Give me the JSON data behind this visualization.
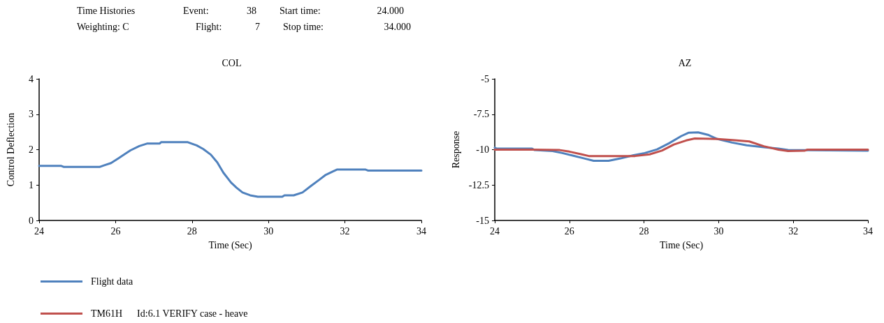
{
  "chart_data": [
    {
      "type": "line",
      "title": "COL",
      "xlabel": "Time (Sec)",
      "ylabel": "Control Deflection",
      "xlim": [
        24,
        34
      ],
      "xticks": [
        24,
        26,
        28,
        30,
        32,
        34
      ],
      "ylim": [
        0,
        4
      ],
      "yticks": [
        0,
        1,
        2,
        3,
        4
      ],
      "grid": false,
      "annotations": [
        "Time Histories",
        "Event:",
        "38",
        "Start time:",
        "24.000",
        "Weighting: C",
        "Flight:",
        "7",
        "Stop time:",
        "34.000"
      ],
      "series": [
        {
          "color": "#4f81bd",
          "x": [
            24,
            24.58,
            24.65,
            25.58,
            25.68,
            25.88,
            26.08,
            26.25,
            26.39,
            26.62,
            26.82,
            27.15,
            27.19,
            27.89,
            27.99,
            28.12,
            28.29,
            28.49,
            28.66,
            28.82,
            29.02,
            29.16,
            29.32,
            29.52,
            29.72,
            30.36,
            30.42,
            30.66,
            30.89,
            31.13,
            31.33,
            31.5,
            31.7,
            31.8,
            32.53,
            32.6,
            34
          ],
          "values": [
            1.54,
            1.54,
            1.51,
            1.51,
            1.55,
            1.62,
            1.76,
            1.88,
            1.98,
            2.1,
            2.17,
            2.17,
            2.21,
            2.21,
            2.17,
            2.12,
            2.02,
            1.86,
            1.64,
            1.35,
            1.07,
            0.93,
            0.79,
            0.71,
            0.67,
            0.67,
            0.71,
            0.71,
            0.79,
            0.99,
            1.15,
            1.29,
            1.39,
            1.44,
            1.44,
            1.41,
            1.41
          ]
        }
      ]
    },
    {
      "type": "line",
      "title": "AZ",
      "xlabel": "Time (Sec)",
      "ylabel": "Response",
      "xlim": [
        24,
        34
      ],
      "xticks": [
        24,
        26,
        28,
        30,
        32,
        34
      ],
      "ylim": [
        -15,
        -5
      ],
      "yticks": [
        -15,
        -12.5,
        -10,
        -7.5,
        -5
      ],
      "grid": false,
      "legend": "bottom left",
      "series": [
        {
          "name": "Flight data",
          "color": "#4f81bd",
          "x": [
            24,
            24.05,
            25.0,
            25.06,
            25.55,
            25.81,
            26.07,
            26.4,
            26.65,
            27.05,
            27.37,
            27.7,
            28.02,
            28.35,
            28.67,
            29.0,
            29.19,
            29.45,
            29.71,
            29.97,
            30.36,
            30.75,
            31.21,
            31.6,
            31.86,
            34
          ],
          "values": [
            -9.86,
            -9.93,
            -9.93,
            -10.02,
            -10.1,
            -10.24,
            -10.41,
            -10.62,
            -10.79,
            -10.79,
            -10.62,
            -10.41,
            -10.24,
            -9.98,
            -9.55,
            -9.04,
            -8.81,
            -8.78,
            -8.95,
            -9.25,
            -9.5,
            -9.69,
            -9.83,
            -9.93,
            -10.03,
            -10.07
          ]
        },
        {
          "name": "TM61H      Id:6.1 VERIFY case - heave",
          "color": "#c0504d",
          "x": [
            24,
            25.0,
            25.74,
            26.0,
            26.33,
            26.52,
            27.76,
            28.15,
            28.48,
            28.8,
            29.13,
            29.36,
            29.97,
            30.43,
            30.82,
            31.21,
            31.6,
            31.86,
            32.31,
            32.38,
            34
          ],
          "values": [
            -10,
            -10,
            -10.03,
            -10.14,
            -10.33,
            -10.45,
            -10.45,
            -10.33,
            -10.07,
            -9.64,
            -9.35,
            -9.21,
            -9.25,
            -9.33,
            -9.42,
            -9.76,
            -10,
            -10.1,
            -10.07,
            -10,
            -10
          ]
        }
      ]
    }
  ]
}
